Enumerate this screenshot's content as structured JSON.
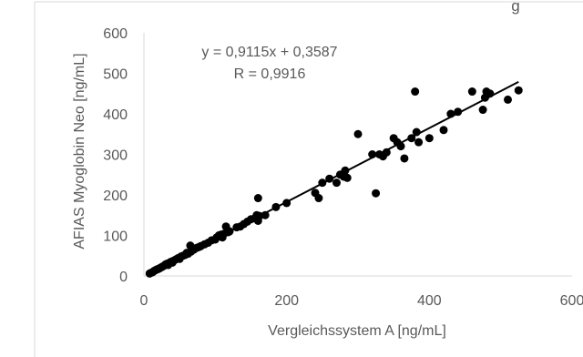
{
  "chart_data": {
    "type": "scatter",
    "title": "",
    "title_fragment": "g",
    "xlabel": "Vergleichssystem A [ng/mL]",
    "ylabel": "AFIAS Myoglobin Neo [ng/mL]",
    "xlim": [
      0,
      600
    ],
    "ylim": [
      0,
      600
    ],
    "x_ticks": [
      "0",
      "200",
      "400",
      "600"
    ],
    "y_ticks": [
      "0",
      "100",
      "200",
      "300",
      "400",
      "500",
      "600"
    ],
    "grid": false,
    "legend": "none",
    "trendline": {
      "type": "linear",
      "slope": 0.9115,
      "intercept": 0.3587,
      "equation_label": "y = 0,9115x + 0,3587",
      "r_label": "R = 0,9916",
      "x_range": [
        8,
        525
      ]
    },
    "points": [
      [
        8,
        6
      ],
      [
        10,
        8
      ],
      [
        12,
        9
      ],
      [
        14,
        12
      ],
      [
        16,
        14
      ],
      [
        18,
        16
      ],
      [
        20,
        17
      ],
      [
        22,
        19
      ],
      [
        24,
        21
      ],
      [
        26,
        23
      ],
      [
        28,
        25
      ],
      [
        30,
        28
      ],
      [
        32,
        30
      ],
      [
        34,
        27
      ],
      [
        36,
        33
      ],
      [
        38,
        35
      ],
      [
        40,
        33
      ],
      [
        42,
        38
      ],
      [
        45,
        41
      ],
      [
        48,
        44
      ],
      [
        50,
        42
      ],
      [
        52,
        48
      ],
      [
        55,
        50
      ],
      [
        58,
        52
      ],
      [
        60,
        57
      ],
      [
        62,
        55
      ],
      [
        65,
        75
      ],
      [
        66,
        60
      ],
      [
        70,
        65
      ],
      [
        72,
        68
      ],
      [
        75,
        70
      ],
      [
        78,
        72
      ],
      [
        80,
        74
      ],
      [
        85,
        78
      ],
      [
        90,
        82
      ],
      [
        95,
        88
      ],
      [
        100,
        90
      ],
      [
        102,
        95
      ],
      [
        105,
        100
      ],
      [
        108,
        102
      ],
      [
        110,
        95
      ],
      [
        112,
        104
      ],
      [
        115,
        122
      ],
      [
        118,
        108
      ],
      [
        120,
        110
      ],
      [
        130,
        120
      ],
      [
        135,
        122
      ],
      [
        140,
        128
      ],
      [
        145,
        134
      ],
      [
        150,
        140
      ],
      [
        155,
        142
      ],
      [
        158,
        150
      ],
      [
        160,
        136
      ],
      [
        160,
        192
      ],
      [
        162,
        148
      ],
      [
        170,
        150
      ],
      [
        185,
        170
      ],
      [
        200,
        180
      ],
      [
        240,
        205
      ],
      [
        245,
        192
      ],
      [
        250,
        230
      ],
      [
        260,
        240
      ],
      [
        270,
        230
      ],
      [
        275,
        250
      ],
      [
        280,
        245
      ],
      [
        282,
        260
      ],
      [
        285,
        242
      ],
      [
        300,
        350
      ],
      [
        320,
        300
      ],
      [
        325,
        204
      ],
      [
        330,
        300
      ],
      [
        335,
        295
      ],
      [
        340,
        305
      ],
      [
        350,
        340
      ],
      [
        355,
        330
      ],
      [
        360,
        320
      ],
      [
        365,
        290
      ],
      [
        375,
        340
      ],
      [
        380,
        455
      ],
      [
        382,
        355
      ],
      [
        385,
        330
      ],
      [
        400,
        340
      ],
      [
        420,
        360
      ],
      [
        430,
        400
      ],
      [
        440,
        405
      ],
      [
        460,
        455
      ],
      [
        475,
        410
      ],
      [
        478,
        440
      ],
      [
        480,
        455
      ],
      [
        485,
        450
      ],
      [
        510,
        435
      ],
      [
        525,
        458
      ]
    ]
  }
}
